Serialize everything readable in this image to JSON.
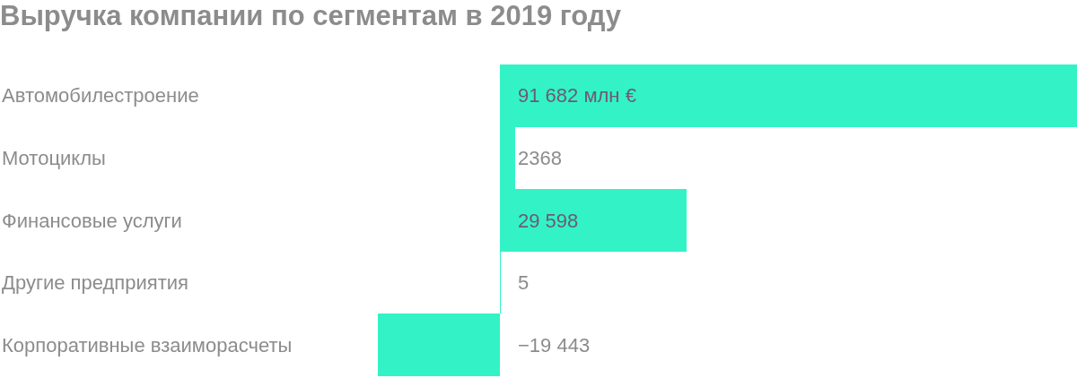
{
  "chart_data": {
    "type": "bar",
    "orientation": "horizontal",
    "title": "Выручка компании по сегментам в 2019 году",
    "categories": [
      "Автомобилестроение",
      "Мотоциклы",
      "Финансовые услуги",
      "Другие предприятия",
      "Корпоративные взаиморасчеты"
    ],
    "values": [
      91682,
      2368,
      29598,
      5,
      -19443
    ],
    "value_labels": [
      "91 682 млн €",
      "2368",
      "29 598",
      "5",
      "−19 443"
    ],
    "color": "#33f3c6",
    "tick_labels": false
  }
}
